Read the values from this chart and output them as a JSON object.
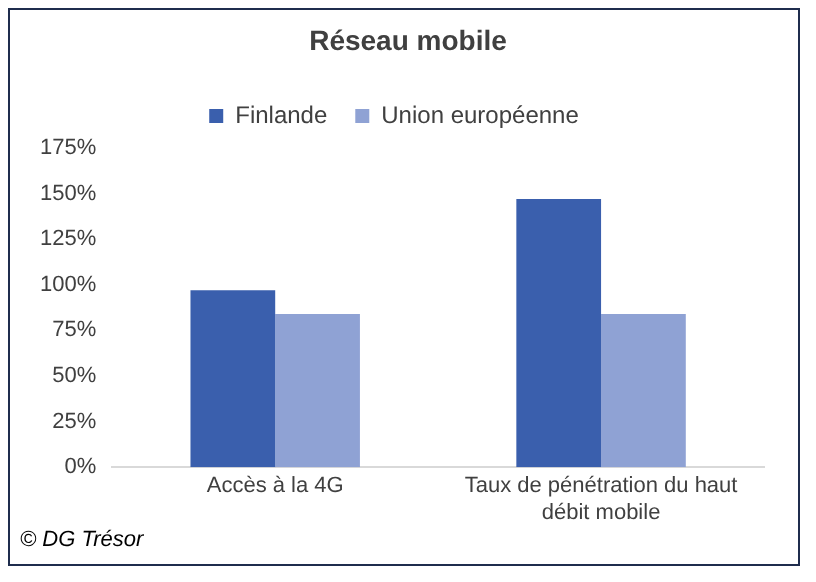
{
  "chart_data": {
    "type": "bar",
    "title": "Réseau mobile",
    "categories": [
      "Accès à la 4G",
      "Taux de pénétration du haut débit mobile"
    ],
    "series": [
      {
        "name": "Finlande",
        "color": "#3a5fad",
        "values": [
          97,
          147
        ]
      },
      {
        "name": "Union européenne",
        "color": "#8fa2d4",
        "values": [
          84,
          84
        ]
      }
    ],
    "ylim": [
      0,
      175
    ],
    "yticks": [
      {
        "value": 0,
        "label": "0%"
      },
      {
        "value": 25,
        "label": "25%"
      },
      {
        "value": 50,
        "label": "50%"
      },
      {
        "value": 75,
        "label": "75%"
      },
      {
        "value": 100,
        "label": "100%"
      },
      {
        "value": 125,
        "label": "125%"
      },
      {
        "value": 150,
        "label": "150%"
      },
      {
        "value": 175,
        "label": "175%"
      }
    ],
    "grid": false,
    "legend": "top",
    "annotations": [
      "© DG Trésor"
    ]
  }
}
